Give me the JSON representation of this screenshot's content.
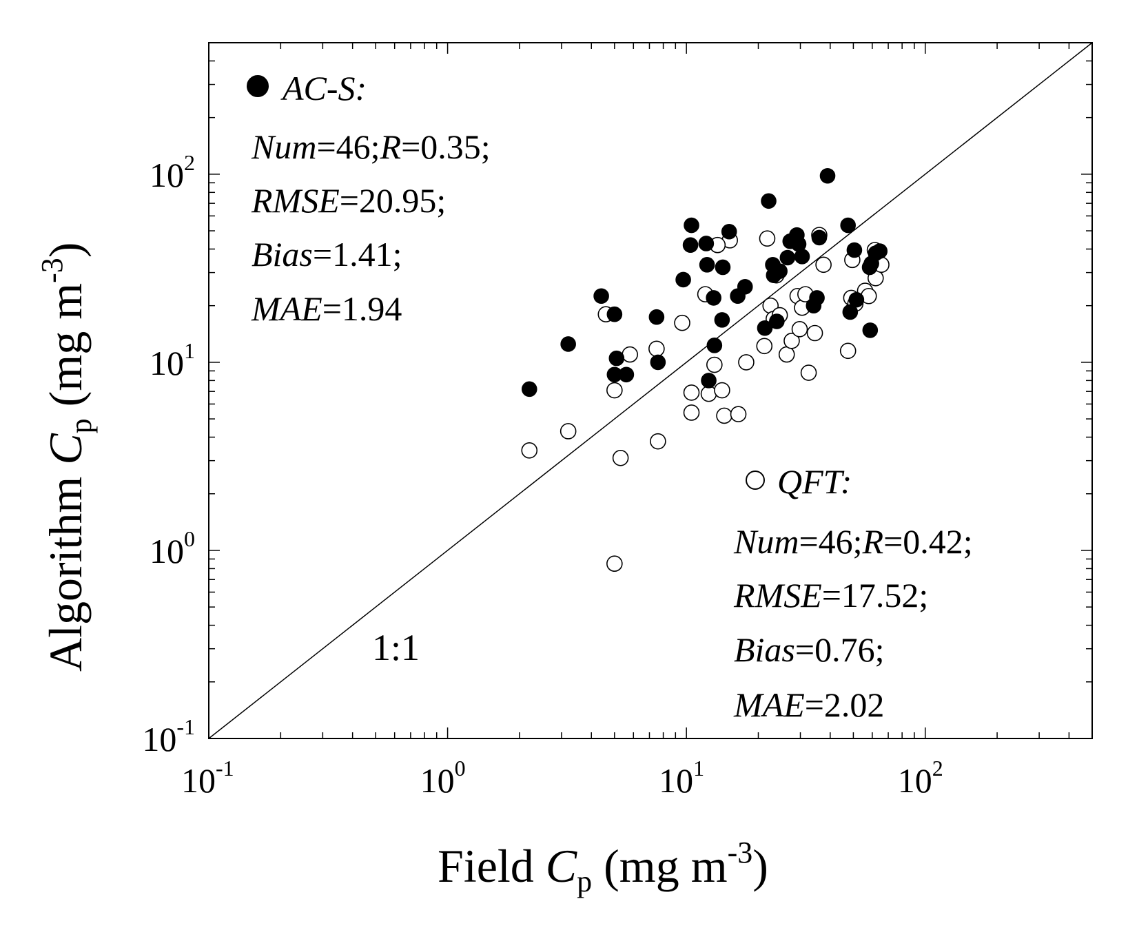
{
  "chart_data": {
    "type": "scatter",
    "scale": "log-log",
    "xlim": [
      0.1,
      500
    ],
    "ylim": [
      0.1,
      500
    ],
    "x_ticks": [
      {
        "base": "10",
        "exp": "-1",
        "value": 0.1
      },
      {
        "base": "10",
        "exp": "0",
        "value": 1
      },
      {
        "base": "10",
        "exp": "1",
        "value": 10
      },
      {
        "base": "10",
        "exp": "2",
        "value": 100
      }
    ],
    "y_ticks": [
      {
        "base": "10",
        "exp": "-1",
        "value": 0.1
      },
      {
        "base": "10",
        "exp": "0",
        "value": 1
      },
      {
        "base": "10",
        "exp": "1",
        "value": 10
      },
      {
        "base": "10",
        "exp": "2",
        "value": 100
      }
    ],
    "xlabel": {
      "prefix": "Field ",
      "var": "C",
      "sub": "p",
      "unit": " (mg m",
      "unit_exp": "-3",
      "close": ")"
    },
    "ylabel": {
      "prefix": "Algorithm ",
      "var": "C",
      "sub": "p",
      "unit": " (mg m",
      "unit_exp": "-3",
      "close": ")"
    },
    "reference_line": {
      "label": "1:1",
      "slope": 1
    },
    "series": [
      {
        "name": "AC-S:",
        "marker": "filled-circle",
        "color": "#000000",
        "stats": {
          "num_label": "Num",
          "num": "=46;",
          "r_label": "R",
          "r": "=0.35;",
          "rmse_label": "RMSE",
          "rmse": "=20.95;",
          "bias_label": "Bias",
          "bias": "=1.41;",
          "mae_label": "MAE",
          "mae": "=1.94"
        },
        "points": [
          [
            2.2,
            7.2
          ],
          [
            3.2,
            12.5
          ],
          [
            4.4,
            22.5
          ],
          [
            5.0,
            18.0
          ],
          [
            5.1,
            10.5
          ],
          [
            5.0,
            8.6
          ],
          [
            5.6,
            8.6
          ],
          [
            7.5,
            17.4
          ],
          [
            7.6,
            10.0
          ],
          [
            9.7,
            27.5
          ],
          [
            10.4,
            42.0
          ],
          [
            10.5,
            53.5
          ],
          [
            12.1,
            42.8
          ],
          [
            12.2,
            33.0
          ],
          [
            12.4,
            8.0
          ],
          [
            13.1,
            12.3
          ],
          [
            13.0,
            22.0
          ],
          [
            14.1,
            16.8
          ],
          [
            14.2,
            32.0
          ],
          [
            15.1,
            49.5
          ],
          [
            16.4,
            22.5
          ],
          [
            17.6,
            25.2
          ],
          [
            21.3,
            15.2
          ],
          [
            22.1,
            72.0
          ],
          [
            23.0,
            33.0
          ],
          [
            23.2,
            29.0
          ],
          [
            23.9,
            16.5
          ],
          [
            24.6,
            30.5
          ],
          [
            26.5,
            36.0
          ],
          [
            27.2,
            44.0
          ],
          [
            29.0,
            47.5
          ],
          [
            29.5,
            42.5
          ],
          [
            30.5,
            36.5
          ],
          [
            34.1,
            20.0
          ],
          [
            35.2,
            22.0
          ],
          [
            36.0,
            46.0
          ],
          [
            39.0,
            98.0
          ],
          [
            47.5,
            53.5
          ],
          [
            48.5,
            18.5
          ],
          [
            50.5,
            39.5
          ],
          [
            51.5,
            21.5
          ],
          [
            58.5,
            32.0
          ],
          [
            58.8,
            14.8
          ],
          [
            62.0,
            38.0
          ],
          [
            64.5,
            39.0
          ],
          [
            59.5,
            33.5
          ]
        ]
      },
      {
        "name": "QFT:",
        "marker": "open-circle",
        "color": "#000000",
        "stats": {
          "num_label": "Num",
          "num": "=46;",
          "r_label": "R",
          "r": "=0.42;",
          "rmse_label": "RMSE",
          "rmse": "=17.52;",
          "bias_label": "Bias",
          "bias": "=0.76;",
          "mae_label": "MAE",
          "mae": "=2.02"
        },
        "points": [
          [
            2.2,
            3.4
          ],
          [
            3.2,
            4.3
          ],
          [
            4.6,
            18.0
          ],
          [
            5.0,
            7.1
          ],
          [
            5.3,
            3.1
          ],
          [
            5.0,
            0.85
          ],
          [
            5.8,
            11.0
          ],
          [
            7.5,
            11.8
          ],
          [
            7.6,
            3.8
          ],
          [
            9.6,
            16.2
          ],
          [
            10.5,
            6.9
          ],
          [
            10.5,
            5.4
          ],
          [
            12.0,
            23.0
          ],
          [
            12.4,
            6.8
          ],
          [
            13.1,
            9.7
          ],
          [
            14.1,
            7.1
          ],
          [
            14.4,
            5.2
          ],
          [
            15.2,
            44.5
          ],
          [
            13.5,
            42.0
          ],
          [
            16.5,
            5.3
          ],
          [
            17.8,
            10.0
          ],
          [
            21.2,
            12.2
          ],
          [
            21.8,
            45.5
          ],
          [
            22.5,
            20.0
          ],
          [
            23.2,
            17.0
          ],
          [
            23.8,
            29.0
          ],
          [
            24.6,
            17.8
          ],
          [
            26.3,
            11.0
          ],
          [
            27.6,
            13.0
          ],
          [
            29.2,
            22.5
          ],
          [
            29.8,
            15.0
          ],
          [
            30.5,
            19.5
          ],
          [
            31.5,
            23.0
          ],
          [
            32.5,
            8.8
          ],
          [
            34.5,
            14.3
          ],
          [
            36.0,
            47.5
          ],
          [
            37.5,
            33.0
          ],
          [
            47.5,
            11.5
          ],
          [
            49.0,
            22.0
          ],
          [
            49.5,
            35.0
          ],
          [
            51.0,
            20.5
          ],
          [
            56.0,
            24.0
          ],
          [
            58.0,
            22.5
          ],
          [
            62.0,
            28.0
          ],
          [
            65.5,
            33.0
          ],
          [
            61.5,
            39.5
          ]
        ]
      }
    ]
  }
}
